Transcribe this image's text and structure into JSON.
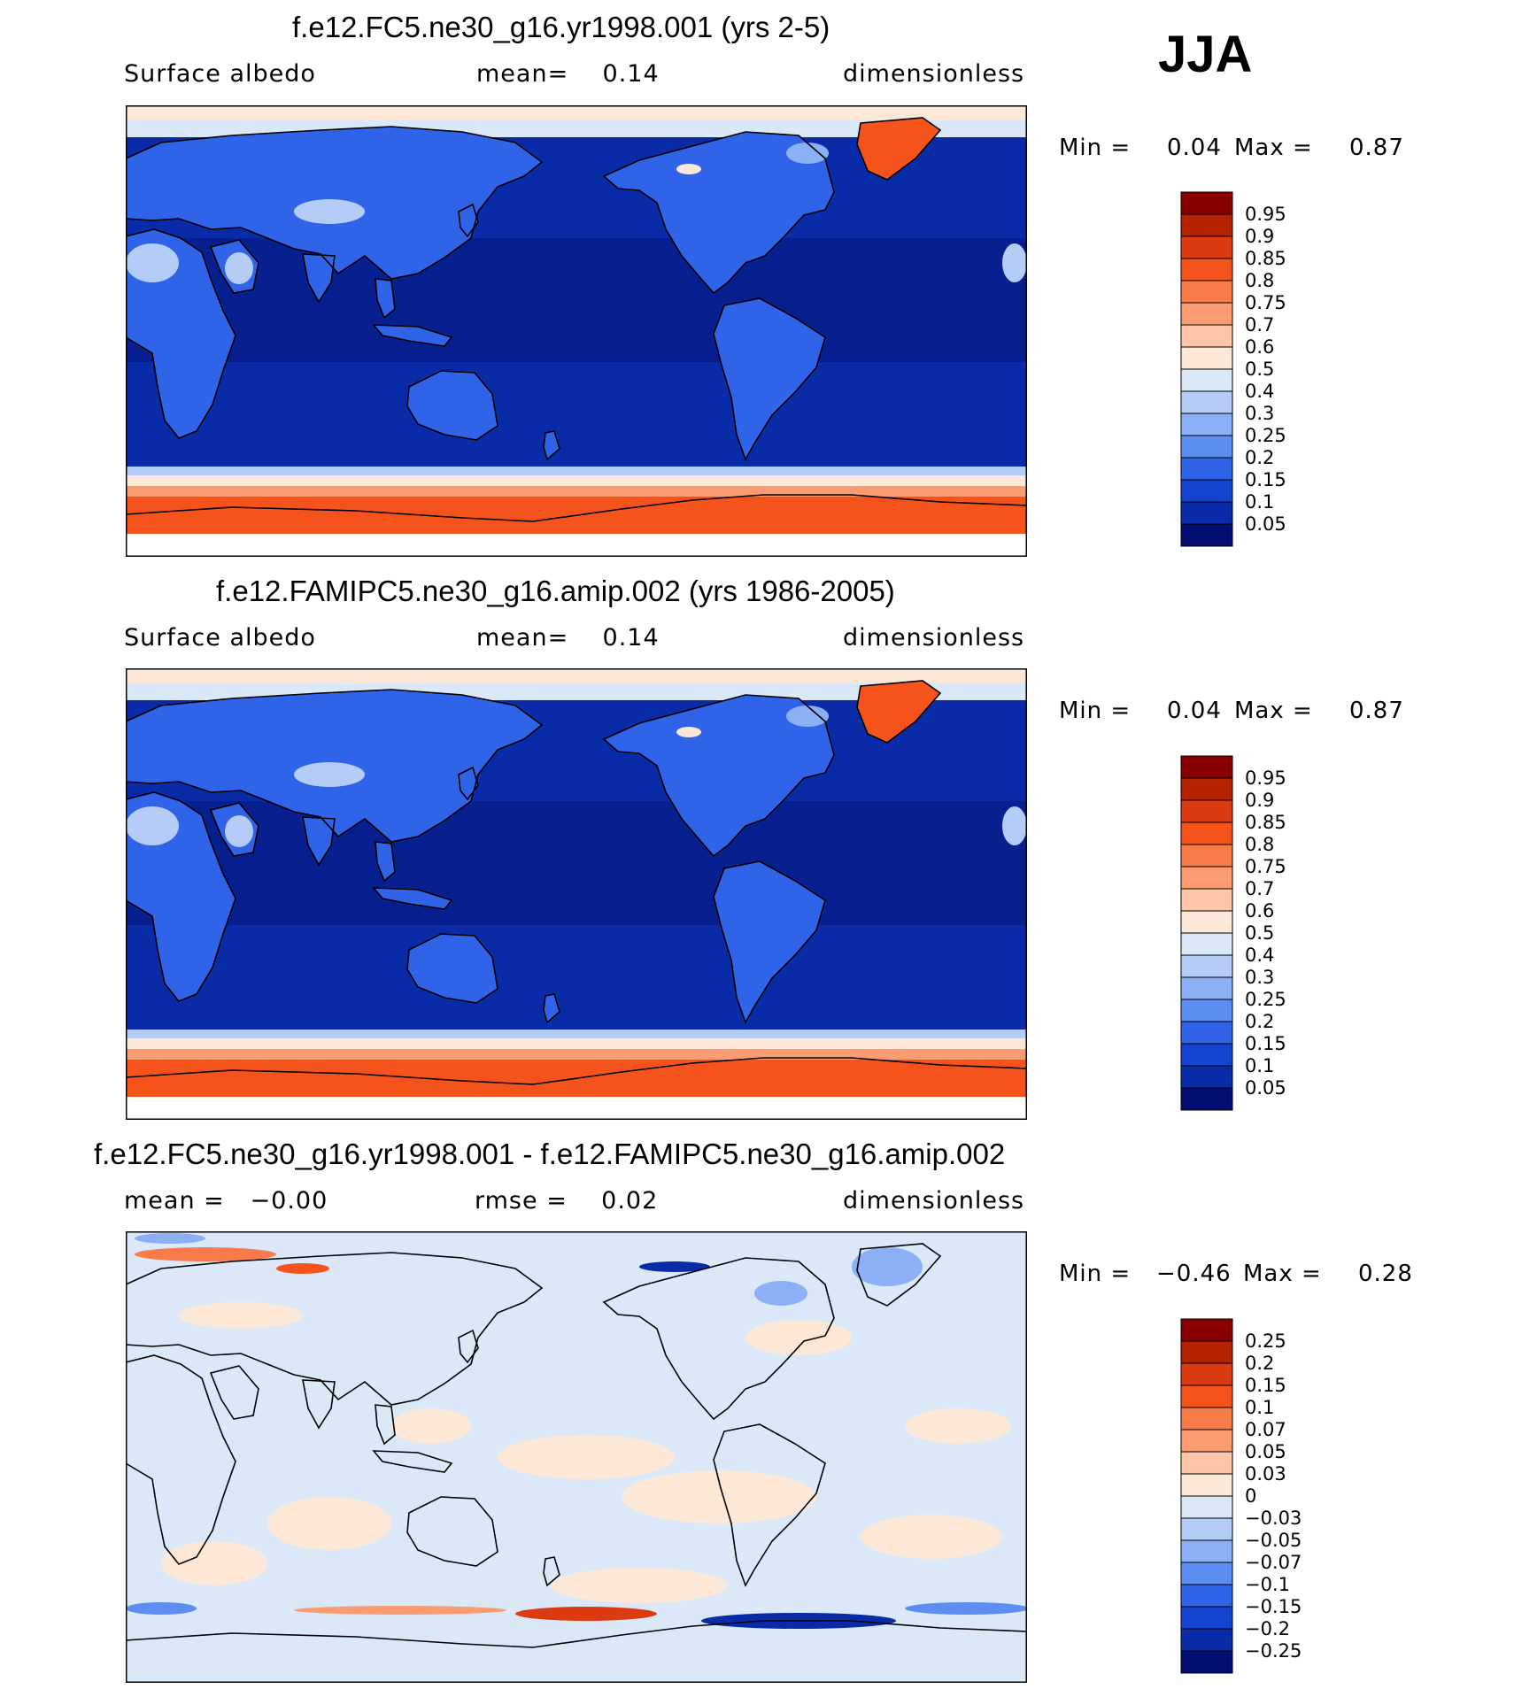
{
  "season": "JJA",
  "panels": [
    {
      "title": "f.e12.FC5.ne30_g16.yr1998.001 (yrs 2-5)",
      "left_label": "Surface albedo",
      "center_label": "mean=    0.14",
      "right_label": "dimensionless",
      "minmax": {
        "min_label": "Min =",
        "min": "0.04",
        "max_label": "Max =",
        "max": "0.87"
      },
      "kind": "field"
    },
    {
      "title": "f.e12.FAMIPC5.ne30_g16.amip.002 (yrs 1986-2005)",
      "left_label": "Surface albedo",
      "center_label": "mean=    0.14",
      "right_label": "dimensionless",
      "minmax": {
        "min_label": "Min =",
        "min": "0.04",
        "max_label": "Max =",
        "max": "0.87"
      },
      "kind": "field"
    },
    {
      "title": "f.e12.FC5.ne30_g16.yr1998.001 - f.e12.FAMIPC5.ne30_g16.amip.002",
      "left_label": "mean =   −0.00",
      "center_label": "rmse =    0.02",
      "right_label": "dimensionless",
      "minmax": {
        "min_label": "Min =",
        "min": "−0.46",
        "max_label": "Max =",
        "max": "0.28"
      },
      "kind": "diff"
    }
  ],
  "chart_data": [
    {
      "type": "heatmap",
      "title": "f.e12.FC5.ne30_g16.yr1998.001 (yrs 2-5)",
      "variable": "Surface albedo",
      "units": "dimensionless",
      "mean": 0.14,
      "min": 0.04,
      "max": 0.87,
      "colorbar_levels": [
        "0.95",
        "0.9",
        "0.85",
        "0.8",
        "0.75",
        "0.7",
        "0.6",
        "0.5",
        "0.4",
        "0.3",
        "0.25",
        "0.2",
        "0.15",
        "0.1",
        "0.05"
      ],
      "colorbar_colors": [
        "#8a0000",
        "#b52200",
        "#dc3a10",
        "#f5531c",
        "#f97b4a",
        "#fb9b72",
        "#fdc6a8",
        "#fde8d8",
        "#dbe8f8",
        "#b5cdf6",
        "#8bb0f5",
        "#5d8df1",
        "#2f64e8",
        "#1443cf",
        "#0a2ba8",
        "#030e72"
      ],
      "map_colors": {
        "ocean": "#0a2ba8",
        "deep_ocean": "#071f8f",
        "land": "#2f64e8",
        "bright_land": "#b5cdf6",
        "sea_ice_edge": "#fde8d8",
        "ice": "#f5531c",
        "ice_core": "#dc3a10"
      }
    },
    {
      "type": "heatmap",
      "title": "f.e12.FAMIPC5.ne30_g16.amip.002 (yrs 1986-2005)",
      "variable": "Surface albedo",
      "units": "dimensionless",
      "mean": 0.14,
      "min": 0.04,
      "max": 0.87,
      "colorbar_levels": [
        "0.95",
        "0.9",
        "0.85",
        "0.8",
        "0.75",
        "0.7",
        "0.6",
        "0.5",
        "0.4",
        "0.3",
        "0.25",
        "0.2",
        "0.15",
        "0.1",
        "0.05"
      ],
      "colorbar_colors": [
        "#8a0000",
        "#b52200",
        "#dc3a10",
        "#f5531c",
        "#f97b4a",
        "#fb9b72",
        "#fdc6a8",
        "#fde8d8",
        "#dbe8f8",
        "#b5cdf6",
        "#8bb0f5",
        "#5d8df1",
        "#2f64e8",
        "#1443cf",
        "#0a2ba8",
        "#030e72"
      ],
      "map_colors": {
        "ocean": "#0a2ba8",
        "deep_ocean": "#071f8f",
        "land": "#2f64e8",
        "bright_land": "#b5cdf6",
        "sea_ice_edge": "#fde8d8",
        "ice": "#f5531c",
        "ice_core": "#dc3a10"
      }
    },
    {
      "type": "heatmap",
      "title": "f.e12.FC5.ne30_g16.yr1998.001 - f.e12.FAMIPC5.ne30_g16.amip.002",
      "units": "dimensionless",
      "mean": -0.0,
      "rmse": 0.02,
      "min": -0.46,
      "max": 0.28,
      "colorbar_levels": [
        "0.25",
        "0.2",
        "0.15",
        "0.1",
        "0.07",
        "0.05",
        "0.03",
        "0",
        "−0.03",
        "−0.05",
        "−0.07",
        "−0.1",
        "−0.15",
        "−0.2",
        "−0.25"
      ],
      "colorbar_colors": [
        "#8a0000",
        "#b52200",
        "#dc3a10",
        "#f5531c",
        "#f97b4a",
        "#fb9b72",
        "#fdc6a8",
        "#fde8d8",
        "#dbe8f8",
        "#b5cdf6",
        "#8bb0f5",
        "#5d8df1",
        "#2f64e8",
        "#1443cf",
        "#0a2ba8",
        "#030e72"
      ],
      "map_colors": {
        "background": "#dbe8f8",
        "positive": "#fde8d8",
        "strong_positive": "#dc3a10",
        "negative": "#5d8df1",
        "strong_negative": "#0a2ba8"
      }
    }
  ]
}
